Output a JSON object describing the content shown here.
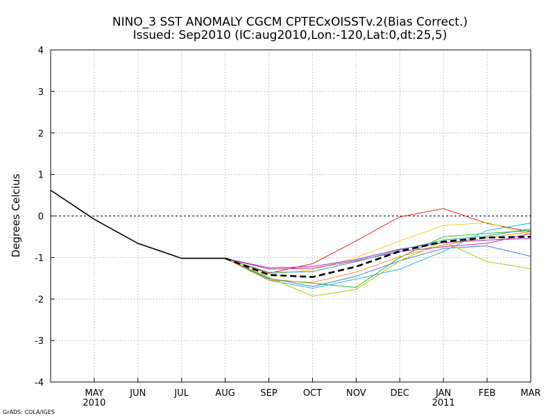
{
  "chart_data": {
    "type": "line",
    "title": "NINO_3 SST ANOMALY CGCM CPTECxOISSTv.2(Bias Correct.)",
    "subtitle": "Issued:  Sep2010 (IC:aug2010,Lon:-120,Lat:0,dt:25,5)",
    "ylabel": "Degrees Celcius",
    "xlabel": "",
    "ylim": [
      -4,
      4
    ],
    "y_ticks": [
      "4",
      "3",
      "2",
      "1",
      "0",
      "-1",
      "-2",
      "-3",
      "-4"
    ],
    "x_ticks": [
      "MAY",
      "JUN",
      "JUL",
      "AUG",
      "SEP",
      "OCT",
      "NOV",
      "DEC",
      "JAN",
      "FEB",
      "MAR"
    ],
    "year_labels": [
      {
        "under": "MAY",
        "text": "2010"
      },
      {
        "under": "JAN",
        "text": "2011"
      }
    ],
    "grid": true,
    "zero_line": "dashed",
    "x_range_months": [
      0,
      11
    ],
    "observed": {
      "name": "observed",
      "color": "#000000",
      "x": [
        0,
        1,
        2,
        3,
        4
      ],
      "y": [
        0.62,
        -0.08,
        -0.66,
        -1.02,
        -1.02
      ]
    },
    "ensemble_mean": {
      "name": "ensemble mean",
      "color": "#000000",
      "style": "dashed",
      "x": [
        4,
        5,
        6,
        7,
        8,
        9,
        10,
        11
      ],
      "y": [
        -1.02,
        -1.42,
        -1.47,
        -1.22,
        -0.85,
        -0.62,
        -0.52,
        -0.5
      ]
    },
    "series": [
      {
        "name": "member-red",
        "color": "#e82020",
        "values": [
          -1.02,
          -1.38,
          -1.15,
          -0.6,
          -0.02,
          0.18,
          -0.18,
          -0.38
        ]
      },
      {
        "name": "member-yellow",
        "color": "#e8d81c",
        "values": [
          -1.02,
          -1.4,
          -1.3,
          -1.0,
          -0.6,
          -0.23,
          -0.16,
          -0.45
        ]
      },
      {
        "name": "member-green",
        "color": "#28b428",
        "values": [
          -1.02,
          -1.52,
          -1.62,
          -1.72,
          -1.0,
          -0.5,
          -0.42,
          -0.35
        ]
      },
      {
        "name": "member-blue",
        "color": "#3c78e6",
        "values": [
          -1.02,
          -1.5,
          -1.7,
          -1.45,
          -1.08,
          -0.78,
          -0.72,
          -0.97
        ]
      },
      {
        "name": "member-cyan",
        "color": "#20b8d8",
        "values": [
          -1.02,
          -1.55,
          -1.74,
          -1.52,
          -1.28,
          -0.85,
          -0.35,
          -0.17
        ]
      },
      {
        "name": "member-lime",
        "color": "#a0d000",
        "values": [
          -1.02,
          -1.48,
          -1.93,
          -1.77,
          -1.08,
          -0.62,
          -1.1,
          -1.27
        ]
      },
      {
        "name": "member-orange",
        "color": "#f09020",
        "values": [
          -1.02,
          -1.55,
          -1.6,
          -1.35,
          -0.98,
          -0.7,
          -0.52,
          -0.38
        ]
      },
      {
        "name": "member-purple",
        "color": "#9028c0",
        "values": [
          -1.02,
          -1.25,
          -1.22,
          -1.05,
          -0.8,
          -0.64,
          -0.58,
          -0.54
        ]
      },
      {
        "name": "member-magenta",
        "color": "#d028a0",
        "values": [
          -1.02,
          -1.28,
          -1.26,
          -1.08,
          -0.86,
          -0.74,
          -0.66,
          -0.42
        ]
      },
      {
        "name": "member-teal",
        "color": "#20a0a0",
        "values": [
          -1.02,
          -1.36,
          -1.34,
          -1.1,
          -0.82,
          -0.58,
          -0.48,
          -0.31
        ]
      }
    ],
    "series_x": [
      4,
      5,
      6,
      7,
      8,
      9,
      10,
      11
    ]
  },
  "footer": {
    "credit": "GrADS: COLA/IGES"
  }
}
